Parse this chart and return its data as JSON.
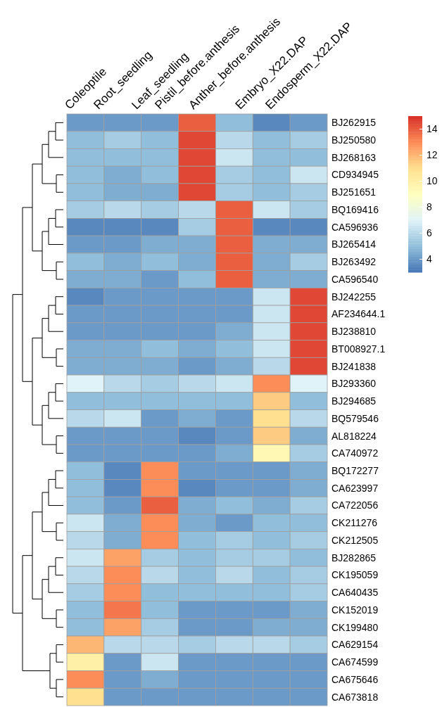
{
  "chart_data": {
    "type": "heatmap",
    "categories": [
      "Coleoptile",
      "Root_seedling",
      "Leaf_seedling",
      "Pistil_before.anthesis",
      "Anther_before.anthesis",
      "Embryo_X22.DAP",
      "Endosperm_X22.DAP"
    ],
    "y_categories": [
      "BJ262915",
      "BJ250580",
      "BJ268163",
      "CD934945",
      "BJ251651",
      "BQ169416",
      "CA596936",
      "BJ265414",
      "BJ263492",
      "CA596540",
      "BJ242255",
      "AF234644.1",
      "BJ238810",
      "BT008927.1",
      "BJ241838",
      "BJ293360",
      "BJ294685",
      "BQ579546",
      "AL818224",
      "CA740972",
      "BQ172277",
      "CA623997",
      "CA722056",
      "CK211276",
      "CK212505",
      "BJ282865",
      "CK195059",
      "CA640435",
      "CK152019",
      "CK199480",
      "CA629154",
      "CA674599",
      "CA675646",
      "CA673818"
    ],
    "cells": [
      [
        4,
        4,
        4,
        14,
        5,
        3.5,
        4
      ],
      [
        5,
        5.5,
        5,
        14.5,
        6,
        5,
        5.5
      ],
      [
        5,
        5,
        5,
        14.5,
        6.5,
        5,
        5
      ],
      [
        5,
        4.5,
        5,
        14.5,
        5.5,
        5,
        6.5
      ],
      [
        5,
        4.5,
        4.5,
        14.5,
        5.5,
        5,
        5.5
      ],
      [
        5.5,
        6,
        5.5,
        6,
        14,
        6.5,
        5.5
      ],
      [
        3.5,
        3.5,
        3.5,
        5.5,
        14,
        3.5,
        3.5
      ],
      [
        4,
        4,
        4.5,
        4.5,
        14,
        4.5,
        4.5
      ],
      [
        5,
        4.5,
        5,
        4.5,
        14,
        4.5,
        5.5
      ],
      [
        4.5,
        4.5,
        4,
        5,
        14,
        4.5,
        4.5
      ],
      [
        3.5,
        4,
        4,
        4,
        4,
        6.5,
        14.5
      ],
      [
        4,
        4,
        4,
        4,
        4,
        6.5,
        14.5
      ],
      [
        4,
        4,
        4,
        4,
        4.5,
        6.5,
        14.5
      ],
      [
        4.5,
        4.5,
        5,
        4.5,
        5,
        6.5,
        14.5
      ],
      [
        4.5,
        4.5,
        4.5,
        4,
        4.5,
        6,
        14.5
      ],
      [
        7,
        6,
        5.5,
        6,
        6.5,
        13,
        7
      ],
      [
        5,
        5,
        5,
        5,
        5,
        11.5,
        5
      ],
      [
        6,
        6.5,
        4,
        4.5,
        4,
        11,
        6
      ],
      [
        4,
        4,
        4,
        3.5,
        4,
        11.5,
        4.5
      ],
      [
        4,
        4,
        4,
        4,
        4.5,
        9.5,
        5.5
      ],
      [
        5,
        3.5,
        13,
        4,
        4,
        4,
        4.5
      ],
      [
        5,
        3.5,
        13,
        3.5,
        4,
        4,
        4.5
      ],
      [
        5,
        4,
        14,
        4.5,
        5,
        4.5,
        5.5
      ],
      [
        6.5,
        4.5,
        13,
        4.5,
        4,
        5,
        5
      ],
      [
        6,
        4.5,
        13,
        5,
        5.5,
        5,
        5.5
      ],
      [
        6.5,
        12.5,
        5.5,
        5,
        5.5,
        5.5,
        5
      ],
      [
        6,
        13,
        6,
        5,
        6,
        5,
        5.5
      ],
      [
        5.5,
        13,
        5,
        5,
        5,
        5,
        5.5
      ],
      [
        5,
        13.5,
        5,
        4,
        4,
        4,
        4.5
      ],
      [
        5,
        12.5,
        5.5,
        4,
        4,
        4.5,
        4.5
      ],
      [
        12,
        6,
        6,
        5.5,
        6,
        6,
        5.5
      ],
      [
        10,
        4,
        6.5,
        4,
        4,
        4,
        4
      ],
      [
        13,
        4,
        4.5,
        4,
        4,
        4,
        4
      ],
      [
        11,
        4,
        4,
        4,
        4,
        4,
        4
      ]
    ],
    "clim": [
      3,
      15
    ],
    "cticks": [
      4,
      6,
      8,
      10,
      12,
      14
    ]
  }
}
